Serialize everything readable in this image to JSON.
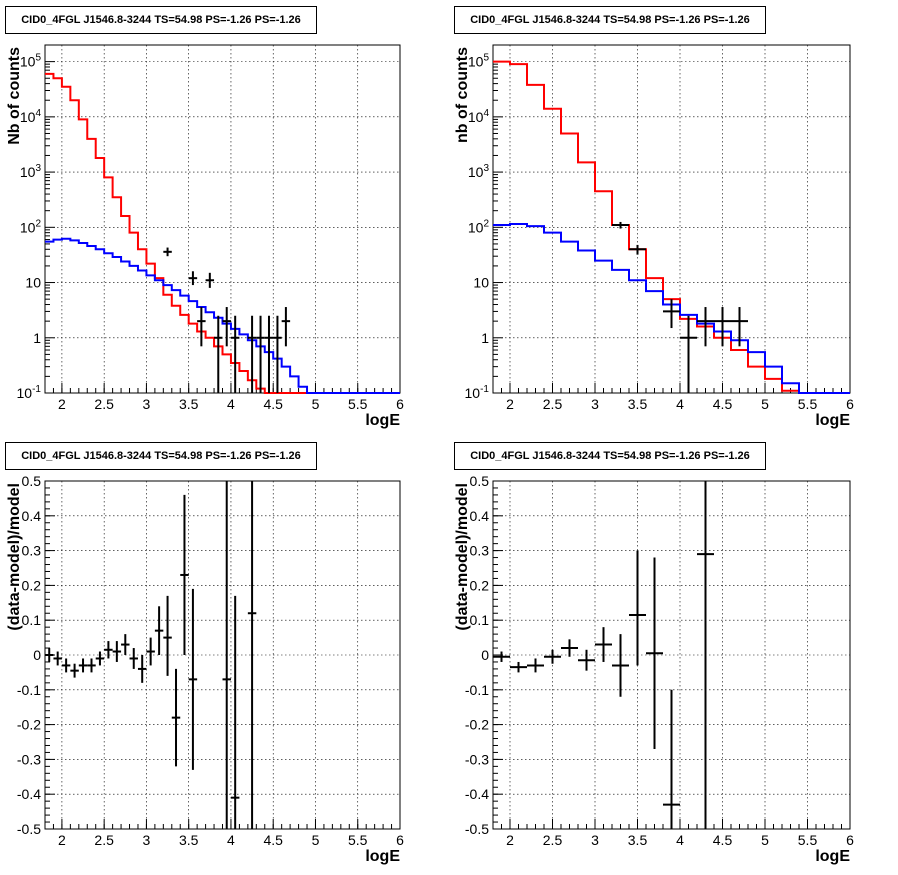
{
  "chart_data": [
    {
      "type": "step-histogram",
      "title": "CID0_4FGL J1546.8-3244 TS=54.98 PS=-1.26 PS=-1.26",
      "xlabel": "logE",
      "ylabel": "Nb of counts",
      "xlim": [
        1.8,
        6.0
      ],
      "ylim": [
        0.1,
        200000
      ],
      "yscale": "log",
      "grid": true,
      "x_ticks": [
        "2",
        "2.5",
        "3",
        "3.5",
        "4",
        "4.5",
        "5",
        "5.5",
        "6"
      ],
      "y_ticks": [
        "10^-1",
        "1",
        "10",
        "10^2",
        "10^3",
        "10^4",
        "10^5"
      ],
      "bin_width": 0.1,
      "series": [
        {
          "color": "#ff0000",
          "bin_low": [
            1.8,
            1.9,
            2.0,
            2.1,
            2.2,
            2.3,
            2.4,
            2.5,
            2.6,
            2.7,
            2.8,
            2.9,
            3.0,
            3.1,
            3.2,
            3.3,
            3.4,
            3.5,
            3.6,
            3.7,
            3.8,
            3.9,
            4.0,
            4.1,
            4.2,
            4.3,
            4.4,
            4.5,
            4.6,
            4.7,
            4.8,
            4.9,
            5.0,
            5.1,
            5.2,
            5.3,
            5.4,
            5.5,
            5.6,
            5.7,
            5.8,
            5.9
          ],
          "values": [
            60000,
            50000,
            35000,
            20000,
            9000,
            4000,
            1800,
            800,
            350,
            160,
            80,
            40,
            22,
            12,
            6,
            3.8,
            2.6,
            1.8,
            1.3,
            1.0,
            0.7,
            0.5,
            0.35,
            0.25,
            0.17,
            0.12,
            0.1,
            0.1,
            0.1,
            0.1,
            0.1,
            0.1,
            0.1,
            0.1,
            0.1,
            0.1,
            0.1,
            0.1,
            0.1,
            0.1,
            0.1,
            0.1
          ]
        },
        {
          "color": "#0000ff",
          "bin_low": [
            1.8,
            1.9,
            2.0,
            2.1,
            2.2,
            2.3,
            2.4,
            2.5,
            2.6,
            2.7,
            2.8,
            2.9,
            3.0,
            3.1,
            3.2,
            3.3,
            3.4,
            3.5,
            3.6,
            3.7,
            3.8,
            3.9,
            4.0,
            4.1,
            4.2,
            4.3,
            4.4,
            4.5,
            4.6,
            4.7,
            4.8,
            4.9,
            5.0,
            5.1,
            5.2,
            5.3,
            5.4,
            5.5,
            5.6,
            5.7,
            5.8,
            5.9
          ],
          "values": [
            55,
            60,
            62,
            58,
            52,
            46,
            40,
            34,
            29,
            24,
            20,
            16.5,
            13.5,
            11,
            9,
            7.3,
            5.8,
            4.6,
            3.6,
            2.9,
            2.3,
            1.8,
            1.45,
            1.15,
            0.9,
            0.7,
            0.55,
            0.42,
            0.3,
            0.2,
            0.13,
            0.1,
            0.1,
            0.1,
            0.1,
            0.1,
            0.1,
            0.1,
            0.1,
            0.1,
            0.1,
            0.1
          ]
        }
      ],
      "points": [
        {
          "x": 3.25,
          "y": 36,
          "ylo": 30,
          "yhi": 43
        },
        {
          "x": 3.55,
          "y": 12,
          "ylo": 9,
          "yhi": 16
        },
        {
          "x": 3.75,
          "y": 11,
          "ylo": 8,
          "yhi": 15
        },
        {
          "x": 3.65,
          "y": 2,
          "ylo": 0.7,
          "yhi": 3.6
        },
        {
          "x": 3.85,
          "y": 1,
          "ylo": 0.1,
          "yhi": 2.5
        },
        {
          "x": 3.95,
          "y": 2,
          "ylo": 0.7,
          "yhi": 3.6
        },
        {
          "x": 4.05,
          "y": 1,
          "ylo": 0.1,
          "yhi": 2.5
        },
        {
          "x": 4.25,
          "y": 1,
          "ylo": 0.1,
          "yhi": 2.5
        },
        {
          "x": 4.35,
          "y": 1,
          "ylo": 0.1,
          "yhi": 2.5
        },
        {
          "x": 4.45,
          "y": 1,
          "ylo": 0.1,
          "yhi": 2.5
        },
        {
          "x": 4.55,
          "y": 1,
          "ylo": 0.1,
          "yhi": 2.5
        },
        {
          "x": 4.65,
          "y": 2,
          "ylo": 0.7,
          "yhi": 3.6
        }
      ]
    },
    {
      "type": "step-histogram",
      "title": "CID0_4FGL J1546.8-3244 TS=54.98 PS=-1.26 PS=-1.26",
      "xlabel": "logE",
      "ylabel": "nb of counts",
      "xlim": [
        1.8,
        6.0
      ],
      "ylim": [
        0.1,
        200000
      ],
      "yscale": "log",
      "grid": true,
      "x_ticks": [
        "2",
        "2.5",
        "3",
        "3.5",
        "4",
        "4.5",
        "5",
        "5.5",
        "6"
      ],
      "y_ticks": [
        "10^-1",
        "1",
        "10",
        "10^2",
        "10^3",
        "10^4",
        "10^5"
      ],
      "bin_width": 0.2,
      "series": [
        {
          "color": "#ff0000",
          "bin_low": [
            1.8,
            2.0,
            2.2,
            2.4,
            2.6,
            2.8,
            3.0,
            3.2,
            3.4,
            3.6,
            3.8,
            4.0,
            4.2,
            4.4,
            4.6,
            4.8,
            5.0,
            5.2,
            5.4,
            5.6,
            5.8
          ],
          "values": [
            100000,
            90000,
            38000,
            14000,
            5000,
            1500,
            450,
            110,
            40,
            12,
            5,
            2.2,
            1.6,
            1.0,
            0.6,
            0.3,
            0.18,
            0.11,
            0.1,
            0.1,
            0.1
          ]
        },
        {
          "color": "#0000ff",
          "bin_low": [
            1.8,
            2.0,
            2.2,
            2.4,
            2.6,
            2.8,
            3.0,
            3.2,
            3.4,
            3.6,
            3.8,
            4.0,
            4.2,
            4.4,
            4.6,
            4.8,
            5.0,
            5.2,
            5.4,
            5.6,
            5.8
          ],
          "values": [
            110,
            115,
            105,
            80,
            55,
            38,
            25,
            17,
            11,
            7,
            4,
            2.6,
            1.8,
            1.3,
            0.9,
            0.55,
            0.3,
            0.15,
            0.1,
            0.1,
            0.1
          ]
        }
      ],
      "points": [
        {
          "x": 3.3,
          "y": 110,
          "ylo": 95,
          "yhi": 125
        },
        {
          "x": 3.5,
          "y": 40,
          "ylo": 32,
          "yhi": 48
        },
        {
          "x": 3.9,
          "y": 3,
          "ylo": 1.5,
          "yhi": 5
        },
        {
          "x": 4.1,
          "y": 1,
          "ylo": 0.1,
          "yhi": 2.5
        },
        {
          "x": 4.3,
          "y": 2,
          "ylo": 0.7,
          "yhi": 3.6
        },
        {
          "x": 4.5,
          "y": 2,
          "ylo": 0.7,
          "yhi": 3.6
        },
        {
          "x": 4.7,
          "y": 2,
          "ylo": 0.7,
          "yhi": 3.6
        }
      ]
    },
    {
      "type": "scatter-errorbars",
      "title": "CID0_4FGL J1546.8-3244 TS=54.98 PS=-1.26 PS=-1.26",
      "xlabel": "logE",
      "ylabel": "(data-model)/model",
      "xlim": [
        1.8,
        6.0
      ],
      "ylim": [
        -0.5,
        0.5
      ],
      "yscale": "linear",
      "grid": true,
      "x_ticks": [
        "2",
        "2.5",
        "3",
        "3.5",
        "4",
        "4.5",
        "5",
        "5.5",
        "6"
      ],
      "y_ticks": [
        "-0.5",
        "-0.4",
        "-0.3",
        "-0.2",
        "-0.1",
        "0",
        "0.1",
        "0.2",
        "0.3",
        "0.4",
        "0.5"
      ],
      "bin_width": 0.1,
      "points": [
        {
          "x": 1.85,
          "y": 0.0,
          "ylo": -0.02,
          "yhi": 0.02
        },
        {
          "x": 1.95,
          "y": -0.01,
          "ylo": -0.03,
          "yhi": 0.01
        },
        {
          "x": 2.05,
          "y": -0.03,
          "ylo": -0.05,
          "yhi": -0.01
        },
        {
          "x": 2.15,
          "y": -0.045,
          "ylo": -0.065,
          "yhi": -0.025
        },
        {
          "x": 2.25,
          "y": -0.03,
          "ylo": -0.05,
          "yhi": -0.01
        },
        {
          "x": 2.35,
          "y": -0.03,
          "ylo": -0.05,
          "yhi": -0.01
        },
        {
          "x": 2.45,
          "y": -0.01,
          "ylo": -0.03,
          "yhi": 0.01
        },
        {
          "x": 2.55,
          "y": 0.015,
          "ylo": -0.01,
          "yhi": 0.04
        },
        {
          "x": 2.65,
          "y": 0.01,
          "ylo": -0.02,
          "yhi": 0.04
        },
        {
          "x": 2.75,
          "y": 0.03,
          "ylo": 0.0,
          "yhi": 0.06
        },
        {
          "x": 2.85,
          "y": -0.01,
          "ylo": -0.04,
          "yhi": 0.02
        },
        {
          "x": 2.95,
          "y": -0.04,
          "ylo": -0.08,
          "yhi": 0.0
        },
        {
          "x": 3.05,
          "y": 0.01,
          "ylo": -0.03,
          "yhi": 0.05
        },
        {
          "x": 3.15,
          "y": 0.07,
          "ylo": 0.0,
          "yhi": 0.14
        },
        {
          "x": 3.25,
          "y": 0.05,
          "ylo": -0.06,
          "yhi": 0.17
        },
        {
          "x": 3.35,
          "y": -0.18,
          "ylo": -0.32,
          "yhi": -0.04
        },
        {
          "x": 3.45,
          "y": 0.23,
          "ylo": 0.0,
          "yhi": 0.46
        },
        {
          "x": 3.55,
          "y": -0.07,
          "ylo": -0.33,
          "yhi": 0.19
        },
        {
          "x": 3.95,
          "y": -0.07,
          "ylo": -0.5,
          "yhi": 0.5
        },
        {
          "x": 4.05,
          "y": -0.41,
          "ylo": -0.5,
          "yhi": 0.17
        },
        {
          "x": 4.25,
          "y": 0.12,
          "ylo": -0.5,
          "yhi": 0.5
        }
      ]
    },
    {
      "type": "scatter-errorbars",
      "title": "CID0_4FGL J1546.8-3244 TS=54.98 PS=-1.26 PS=-1.26",
      "xlabel": "logE",
      "ylabel": "(data-model)/model",
      "xlim": [
        1.8,
        6.0
      ],
      "ylim": [
        -0.5,
        0.5
      ],
      "yscale": "linear",
      "grid": true,
      "x_ticks": [
        "2",
        "2.5",
        "3",
        "3.5",
        "4",
        "4.5",
        "5",
        "5.5",
        "6"
      ],
      "y_ticks": [
        "-0.5",
        "-0.4",
        "-0.3",
        "-0.2",
        "-0.1",
        "0",
        "0.1",
        "0.2",
        "0.3",
        "0.4",
        "0.5"
      ],
      "bin_width": 0.2,
      "points": [
        {
          "x": 1.9,
          "y": -0.005,
          "ylo": -0.02,
          "yhi": 0.01
        },
        {
          "x": 2.1,
          "y": -0.035,
          "ylo": -0.05,
          "yhi": -0.02
        },
        {
          "x": 2.3,
          "y": -0.03,
          "ylo": -0.05,
          "yhi": -0.01
        },
        {
          "x": 2.5,
          "y": -0.005,
          "ylo": -0.025,
          "yhi": 0.015
        },
        {
          "x": 2.7,
          "y": 0.02,
          "ylo": -0.005,
          "yhi": 0.045
        },
        {
          "x": 2.9,
          "y": -0.015,
          "ylo": -0.045,
          "yhi": 0.015
        },
        {
          "x": 3.1,
          "y": 0.03,
          "ylo": -0.02,
          "yhi": 0.08
        },
        {
          "x": 3.3,
          "y": -0.03,
          "ylo": -0.12,
          "yhi": 0.06
        },
        {
          "x": 3.5,
          "y": 0.115,
          "ylo": -0.03,
          "yhi": 0.3
        },
        {
          "x": 3.7,
          "y": 0.005,
          "ylo": -0.27,
          "yhi": 0.28
        },
        {
          "x": 3.9,
          "y": -0.43,
          "ylo": -0.5,
          "yhi": -0.1
        },
        {
          "x": 4.3,
          "y": 0.29,
          "ylo": -0.5,
          "yhi": 0.5
        }
      ]
    }
  ]
}
